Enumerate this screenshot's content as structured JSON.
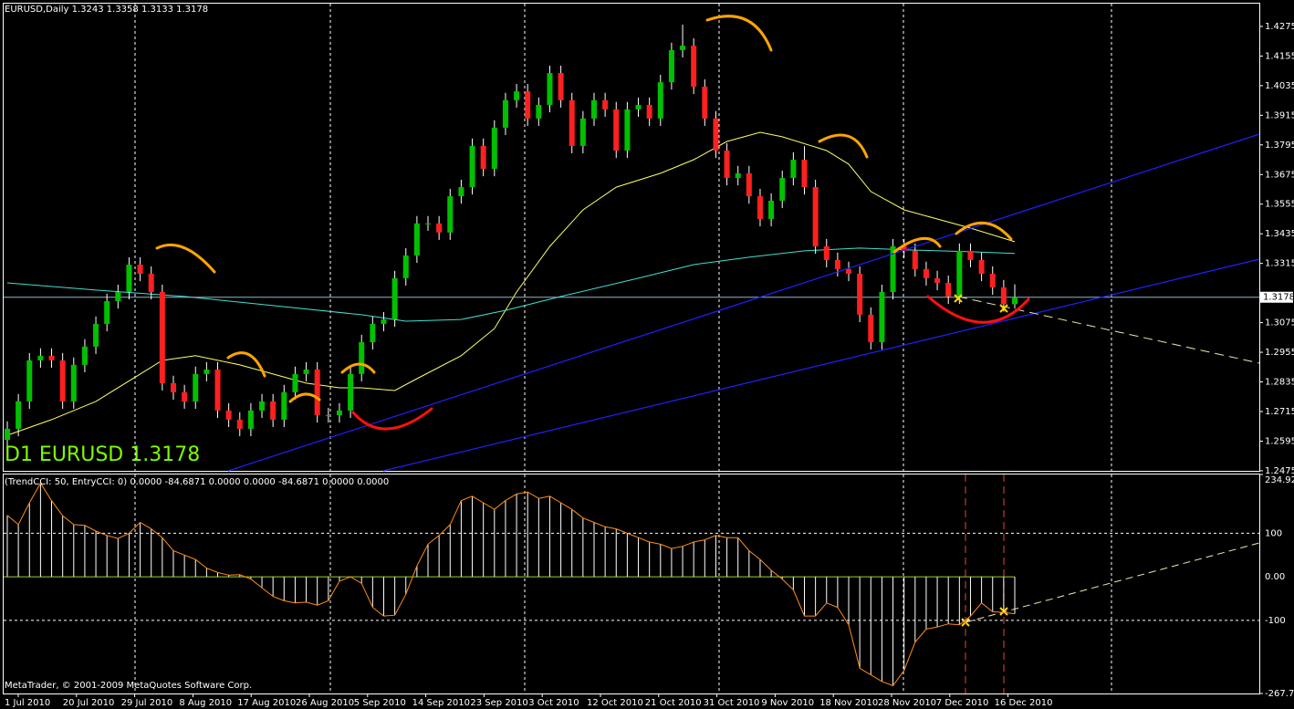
{
  "chart_data": [
    {
      "type": "candlestick",
      "title": "EURUSD,Daily  1.3243 1.3358 1.3133 1.3178",
      "annotation": "D1 EURUSD 1.3178",
      "up_color": "#00c000",
      "down_color": "#ff2020",
      "wick_color": "#ffffff",
      "ylim": [
        1.2471,
        1.4382
      ],
      "yticks": [
        1.4275,
        1.4155,
        1.4035,
        1.3915,
        1.3795,
        1.3675,
        1.3555,
        1.3435,
        1.3315,
        1.3075,
        1.2955,
        1.2835,
        1.2715,
        1.2595,
        1.2475
      ],
      "last_price": 1.3178,
      "candles": [
        [
          1.26,
          1.2675,
          1.257,
          1.2645
        ],
        [
          1.2645,
          1.2786,
          1.2615,
          1.2756
        ],
        [
          1.2756,
          1.2952,
          1.2726,
          1.2922
        ],
        [
          1.2922,
          1.2971,
          1.2892,
          1.2941
        ],
        [
          1.2941,
          1.2971,
          1.2892,
          1.2922
        ],
        [
          1.2922,
          1.2952,
          1.2726,
          1.2756
        ],
        [
          1.2756,
          1.2934,
          1.2726,
          1.2904
        ],
        [
          1.2904,
          1.3008,
          1.2874,
          1.2978
        ],
        [
          1.2978,
          1.31,
          1.2948,
          1.307
        ],
        [
          1.307,
          1.3192,
          1.304,
          1.3162
        ],
        [
          1.3162,
          1.3229,
          1.3132,
          1.3199
        ],
        [
          1.3199,
          1.334,
          1.3169,
          1.331
        ],
        [
          1.331,
          1.334,
          1.3243,
          1.3273
        ],
        [
          1.3273,
          1.3303,
          1.3169,
          1.3199
        ],
        [
          1.3199,
          1.3229,
          1.28,
          1.283
        ],
        [
          1.283,
          1.286,
          1.2763,
          1.2793
        ],
        [
          1.2793,
          1.2823,
          1.2726,
          1.2756
        ],
        [
          1.2756,
          1.2897,
          1.2726,
          1.2867
        ],
        [
          1.2867,
          1.2915,
          1.2837,
          1.2885
        ],
        [
          1.2885,
          1.2915,
          1.2689,
          1.2719
        ],
        [
          1.2719,
          1.2749,
          1.2652,
          1.2682
        ],
        [
          1.2682,
          1.2712,
          1.2615,
          1.2645
        ],
        [
          1.2645,
          1.2749,
          1.2615,
          1.2719
        ],
        [
          1.2719,
          1.2786,
          1.2689,
          1.2756
        ],
        [
          1.2756,
          1.2786,
          1.2652,
          1.2682
        ],
        [
          1.2682,
          1.2823,
          1.2652,
          1.2793
        ],
        [
          1.2793,
          1.2897,
          1.2763,
          1.2867
        ],
        [
          1.2867,
          1.2915,
          1.2837,
          1.2885
        ],
        [
          1.2885,
          1.2915,
          1.267,
          1.27
        ],
        [
          1.27,
          1.273,
          1.267,
          1.27
        ],
        [
          1.27,
          1.2749,
          1.267,
          1.2719
        ],
        [
          1.2719,
          1.2897,
          1.2689,
          1.2867
        ],
        [
          1.2867,
          1.3026,
          1.2837,
          1.2996
        ],
        [
          1.2996,
          1.31,
          1.2966,
          1.307
        ],
        [
          1.307,
          1.3118,
          1.304,
          1.3088
        ],
        [
          1.3088,
          1.3285,
          1.3058,
          1.3255
        ],
        [
          1.3255,
          1.3377,
          1.3225,
          1.3347
        ],
        [
          1.3347,
          1.3507,
          1.3317,
          1.3477
        ],
        [
          1.3477,
          1.3507,
          1.3447,
          1.3477
        ],
        [
          1.3477,
          1.3507,
          1.341,
          1.344
        ],
        [
          1.344,
          1.3617,
          1.341,
          1.3587
        ],
        [
          1.3587,
          1.3654,
          1.3557,
          1.3624
        ],
        [
          1.3624,
          1.3821,
          1.3594,
          1.3791
        ],
        [
          1.3791,
          1.3821,
          1.3668,
          1.3698
        ],
        [
          1.3698,
          1.3895,
          1.3668,
          1.3865
        ],
        [
          1.3865,
          1.4006,
          1.3835,
          1.3976
        ],
        [
          1.3976,
          1.4042,
          1.3946,
          1.4012
        ],
        [
          1.4012,
          1.4042,
          1.3872,
          1.3902
        ],
        [
          1.3902,
          1.3987,
          1.3872,
          1.3957
        ],
        [
          1.3957,
          1.4116,
          1.3927,
          1.4086
        ],
        [
          1.4086,
          1.4116,
          1.3946,
          1.3976
        ],
        [
          1.3976,
          1.4006,
          1.3761,
          1.3791
        ],
        [
          1.3791,
          1.3932,
          1.3761,
          1.3902
        ],
        [
          1.3902,
          1.4006,
          1.3872,
          1.3976
        ],
        [
          1.3976,
          1.4006,
          1.3909,
          1.3939
        ],
        [
          1.3939,
          1.3969,
          1.3742,
          1.3772
        ],
        [
          1.3772,
          1.3969,
          1.3742,
          1.3939
        ],
        [
          1.3939,
          1.3987,
          1.3909,
          1.3957
        ],
        [
          1.3957,
          1.3987,
          1.3872,
          1.3902
        ],
        [
          1.3902,
          1.4079,
          1.3872,
          1.4049
        ],
        [
          1.4049,
          1.4209,
          1.4019,
          1.4179
        ],
        [
          1.4179,
          1.4282,
          1.4149,
          1.4197
        ],
        [
          1.4197,
          1.4227,
          1.4001,
          1.4031
        ],
        [
          1.4031,
          1.4061,
          1.3872,
          1.3902
        ],
        [
          1.3902,
          1.3932,
          1.3742,
          1.3772
        ],
        [
          1.3772,
          1.3802,
          1.3631,
          1.3661
        ],
        [
          1.3661,
          1.371,
          1.3631,
          1.368
        ],
        [
          1.368,
          1.371,
          1.3557,
          1.3587
        ],
        [
          1.3587,
          1.3617,
          1.3465,
          1.3495
        ],
        [
          1.3495,
          1.3599,
          1.3465,
          1.3569
        ],
        [
          1.3569,
          1.3691,
          1.3539,
          1.3661
        ],
        [
          1.3661,
          1.3765,
          1.3631,
          1.3735
        ],
        [
          1.3735,
          1.379,
          1.3594,
          1.3624
        ],
        [
          1.3624,
          1.3654,
          1.3354,
          1.3384
        ],
        [
          1.3384,
          1.3414,
          1.3299,
          1.3329
        ],
        [
          1.3329,
          1.3359,
          1.3262,
          1.3292
        ],
        [
          1.3292,
          1.3322,
          1.3243,
          1.3273
        ],
        [
          1.3273,
          1.3303,
          1.3077,
          1.3107
        ],
        [
          1.3107,
          1.3137,
          1.2966,
          1.2996
        ],
        [
          1.2996,
          1.3229,
          1.2966,
          1.3199
        ],
        [
          1.3199,
          1.3414,
          1.3169,
          1.3384
        ],
        [
          1.3384,
          1.3414,
          1.3336,
          1.3366
        ],
        [
          1.3366,
          1.3396,
          1.3262,
          1.3292
        ],
        [
          1.3292,
          1.3322,
          1.3225,
          1.3255
        ],
        [
          1.3255,
          1.3285,
          1.3206,
          1.3236
        ],
        [
          1.3236,
          1.3266,
          1.3151,
          1.3181
        ],
        [
          1.3181,
          1.3396,
          1.3151,
          1.3366
        ],
        [
          1.3366,
          1.3396,
          1.3299,
          1.3329
        ],
        [
          1.3329,
          1.3359,
          1.3243,
          1.3273
        ],
        [
          1.3273,
          1.3303,
          1.3188,
          1.3218
        ],
        [
          1.3218,
          1.3248,
          1.312,
          1.315
        ],
        [
          1.315,
          1.323,
          1.3133,
          1.3178
        ]
      ],
      "lines": [
        {
          "color": "#ffff66",
          "x": [
            0,
            4,
            8,
            12,
            14,
            17,
            21,
            24,
            27,
            30,
            32,
            35,
            37,
            41,
            44,
            46,
            49,
            52,
            55,
            59,
            62,
            65,
            68,
            70,
            74,
            76,
            78,
            81,
            84,
            87,
            91
          ],
          "values": [
            1.2619,
            1.2682,
            1.2756,
            1.2867,
            1.2922,
            1.2941,
            1.2904,
            1.2867,
            1.283,
            1.2811,
            1.2811,
            1.28,
            1.2848,
            1.2941,
            1.3051,
            1.3199,
            1.3384,
            1.3532,
            1.3624,
            1.368,
            1.3735,
            1.3809,
            1.3846,
            1.3828,
            1.3772,
            1.3717,
            1.3606,
            1.3532,
            1.3495,
            1.3458,
            1.3403
          ]
        },
        {
          "color": "#40e0d0",
          "x": [
            0,
            8,
            16,
            24,
            32,
            36,
            41,
            45,
            50,
            57,
            62,
            67,
            72,
            77,
            82,
            87,
            91
          ],
          "values": [
            1.3236,
            1.3207,
            1.3181,
            1.3144,
            1.3107,
            1.3081,
            1.3088,
            1.3125,
            1.3181,
            1.3255,
            1.331,
            1.334,
            1.3366,
            1.3377,
            1.3369,
            1.3362,
            1.3355
          ]
        }
      ]
    },
    {
      "type": "cci",
      "title": "(TrendCCI: 50, EntryCCI: 0)  0.0000 -84.6871 0.0000 0.0000 -84.6871 0.0000 0.0000",
      "hist_color": "#ffffff",
      "line_color": "#ff8c1a",
      "zero_color": "#9acd32",
      "ylim": [
        -267.751,
        234.924
      ],
      "yticks": [
        234.924,
        100,
        {
          "value": 0,
          "label": "0.00"
        },
        -100,
        -267.751
      ],
      "values": [
        141,
        120,
        170,
        215,
        175,
        140,
        120,
        118,
        105,
        95,
        88,
        100,
        125,
        110,
        90,
        60,
        50,
        40,
        20,
        10,
        4,
        5,
        -5,
        -25,
        -45,
        -55,
        -60,
        -58,
        -65,
        -55,
        -10,
        0,
        -15,
        -70,
        -90,
        -88,
        -40,
        25,
        75,
        95,
        120,
        175,
        185,
        170,
        155,
        175,
        190,
        195,
        180,
        185,
        170,
        155,
        135,
        125,
        115,
        110,
        100,
        90,
        80,
        75,
        65,
        70,
        80,
        85,
        95,
        90,
        90,
        60,
        40,
        15,
        -5,
        -30,
        -90,
        -90,
        -60,
        -70,
        -110,
        -210,
        -225,
        -240,
        -250,
        -215,
        -150,
        -120,
        -115,
        -108,
        -110,
        -90,
        -60,
        -80,
        -82,
        -84.6871
      ]
    }
  ],
  "date_labels": [
    "1 Jul 2010",
    "20 Jul 2010",
    "29 Jul 2010",
    "8 Aug 2010",
    "17 Aug 2010",
    "26 Aug 2010",
    "5 Sep 2010",
    "14 Sep 2010",
    "23 Sep 2010",
    "3 Oct 2010",
    "12 Oct 2010",
    "21 Oct 2010",
    "31 Oct 2010",
    "9 Nov 2010",
    "18 Nov 2010",
    "28 Nov 2010",
    "7 Dec 2010",
    "16 Dec 2010"
  ],
  "footer": "MetaTrader, © 2001-2009 MetaQuotes Software Corp."
}
